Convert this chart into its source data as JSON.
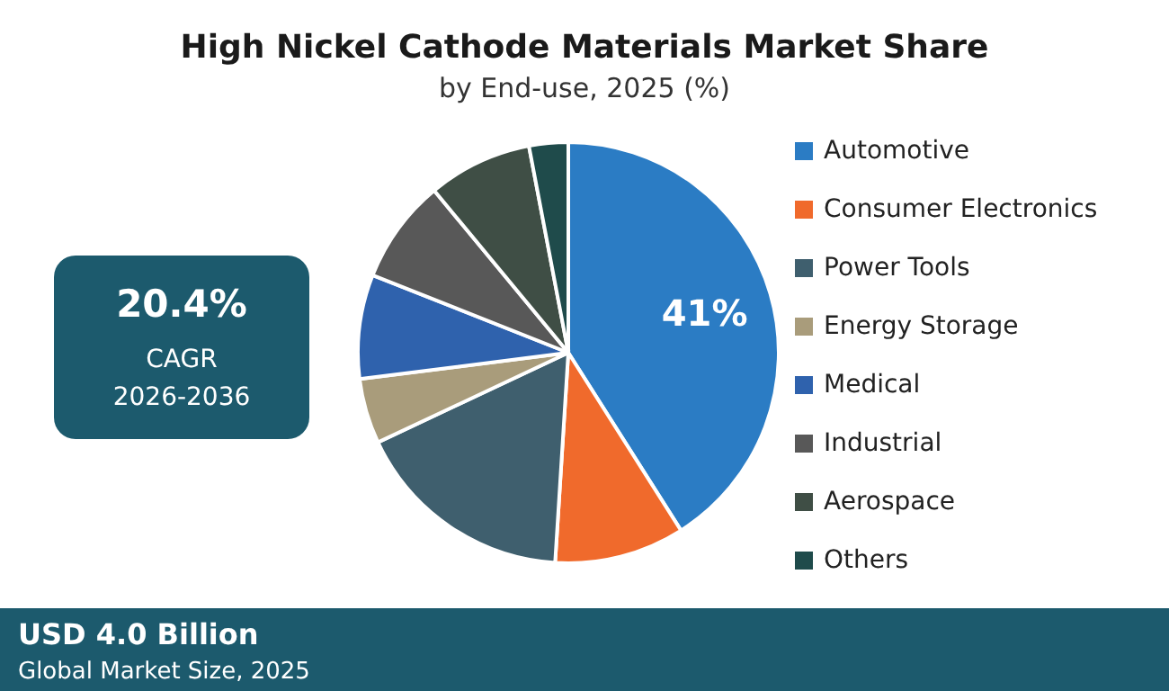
{
  "chart_data": {
    "type": "pie",
    "title": "High Nickel Cathode Materials Market Share",
    "subtitle": "by End-use, 2025 (%)",
    "categories": [
      "Automotive",
      "Consumer Electronics",
      "Power Tools",
      "Energy Storage",
      "Medical",
      "Industrial",
      "Aerospace",
      "Others"
    ],
    "values": [
      41,
      10,
      17,
      5,
      8,
      8,
      8,
      3
    ],
    "colors": [
      "#2b7cc4",
      "#f06a2c",
      "#3f5f6e",
      "#a99c7b",
      "#2f62ad",
      "#585858",
      "#3f4e45",
      "#1f4b4b"
    ],
    "value_labels": [
      "41%",
      null,
      null,
      null,
      null,
      null,
      null,
      null
    ],
    "legend": "right",
    "annotations": [
      "20.4%",
      "CAGR",
      "2026-2036",
      "USD 4.0 Billion",
      "Global Market Size, 2025"
    ]
  }
}
